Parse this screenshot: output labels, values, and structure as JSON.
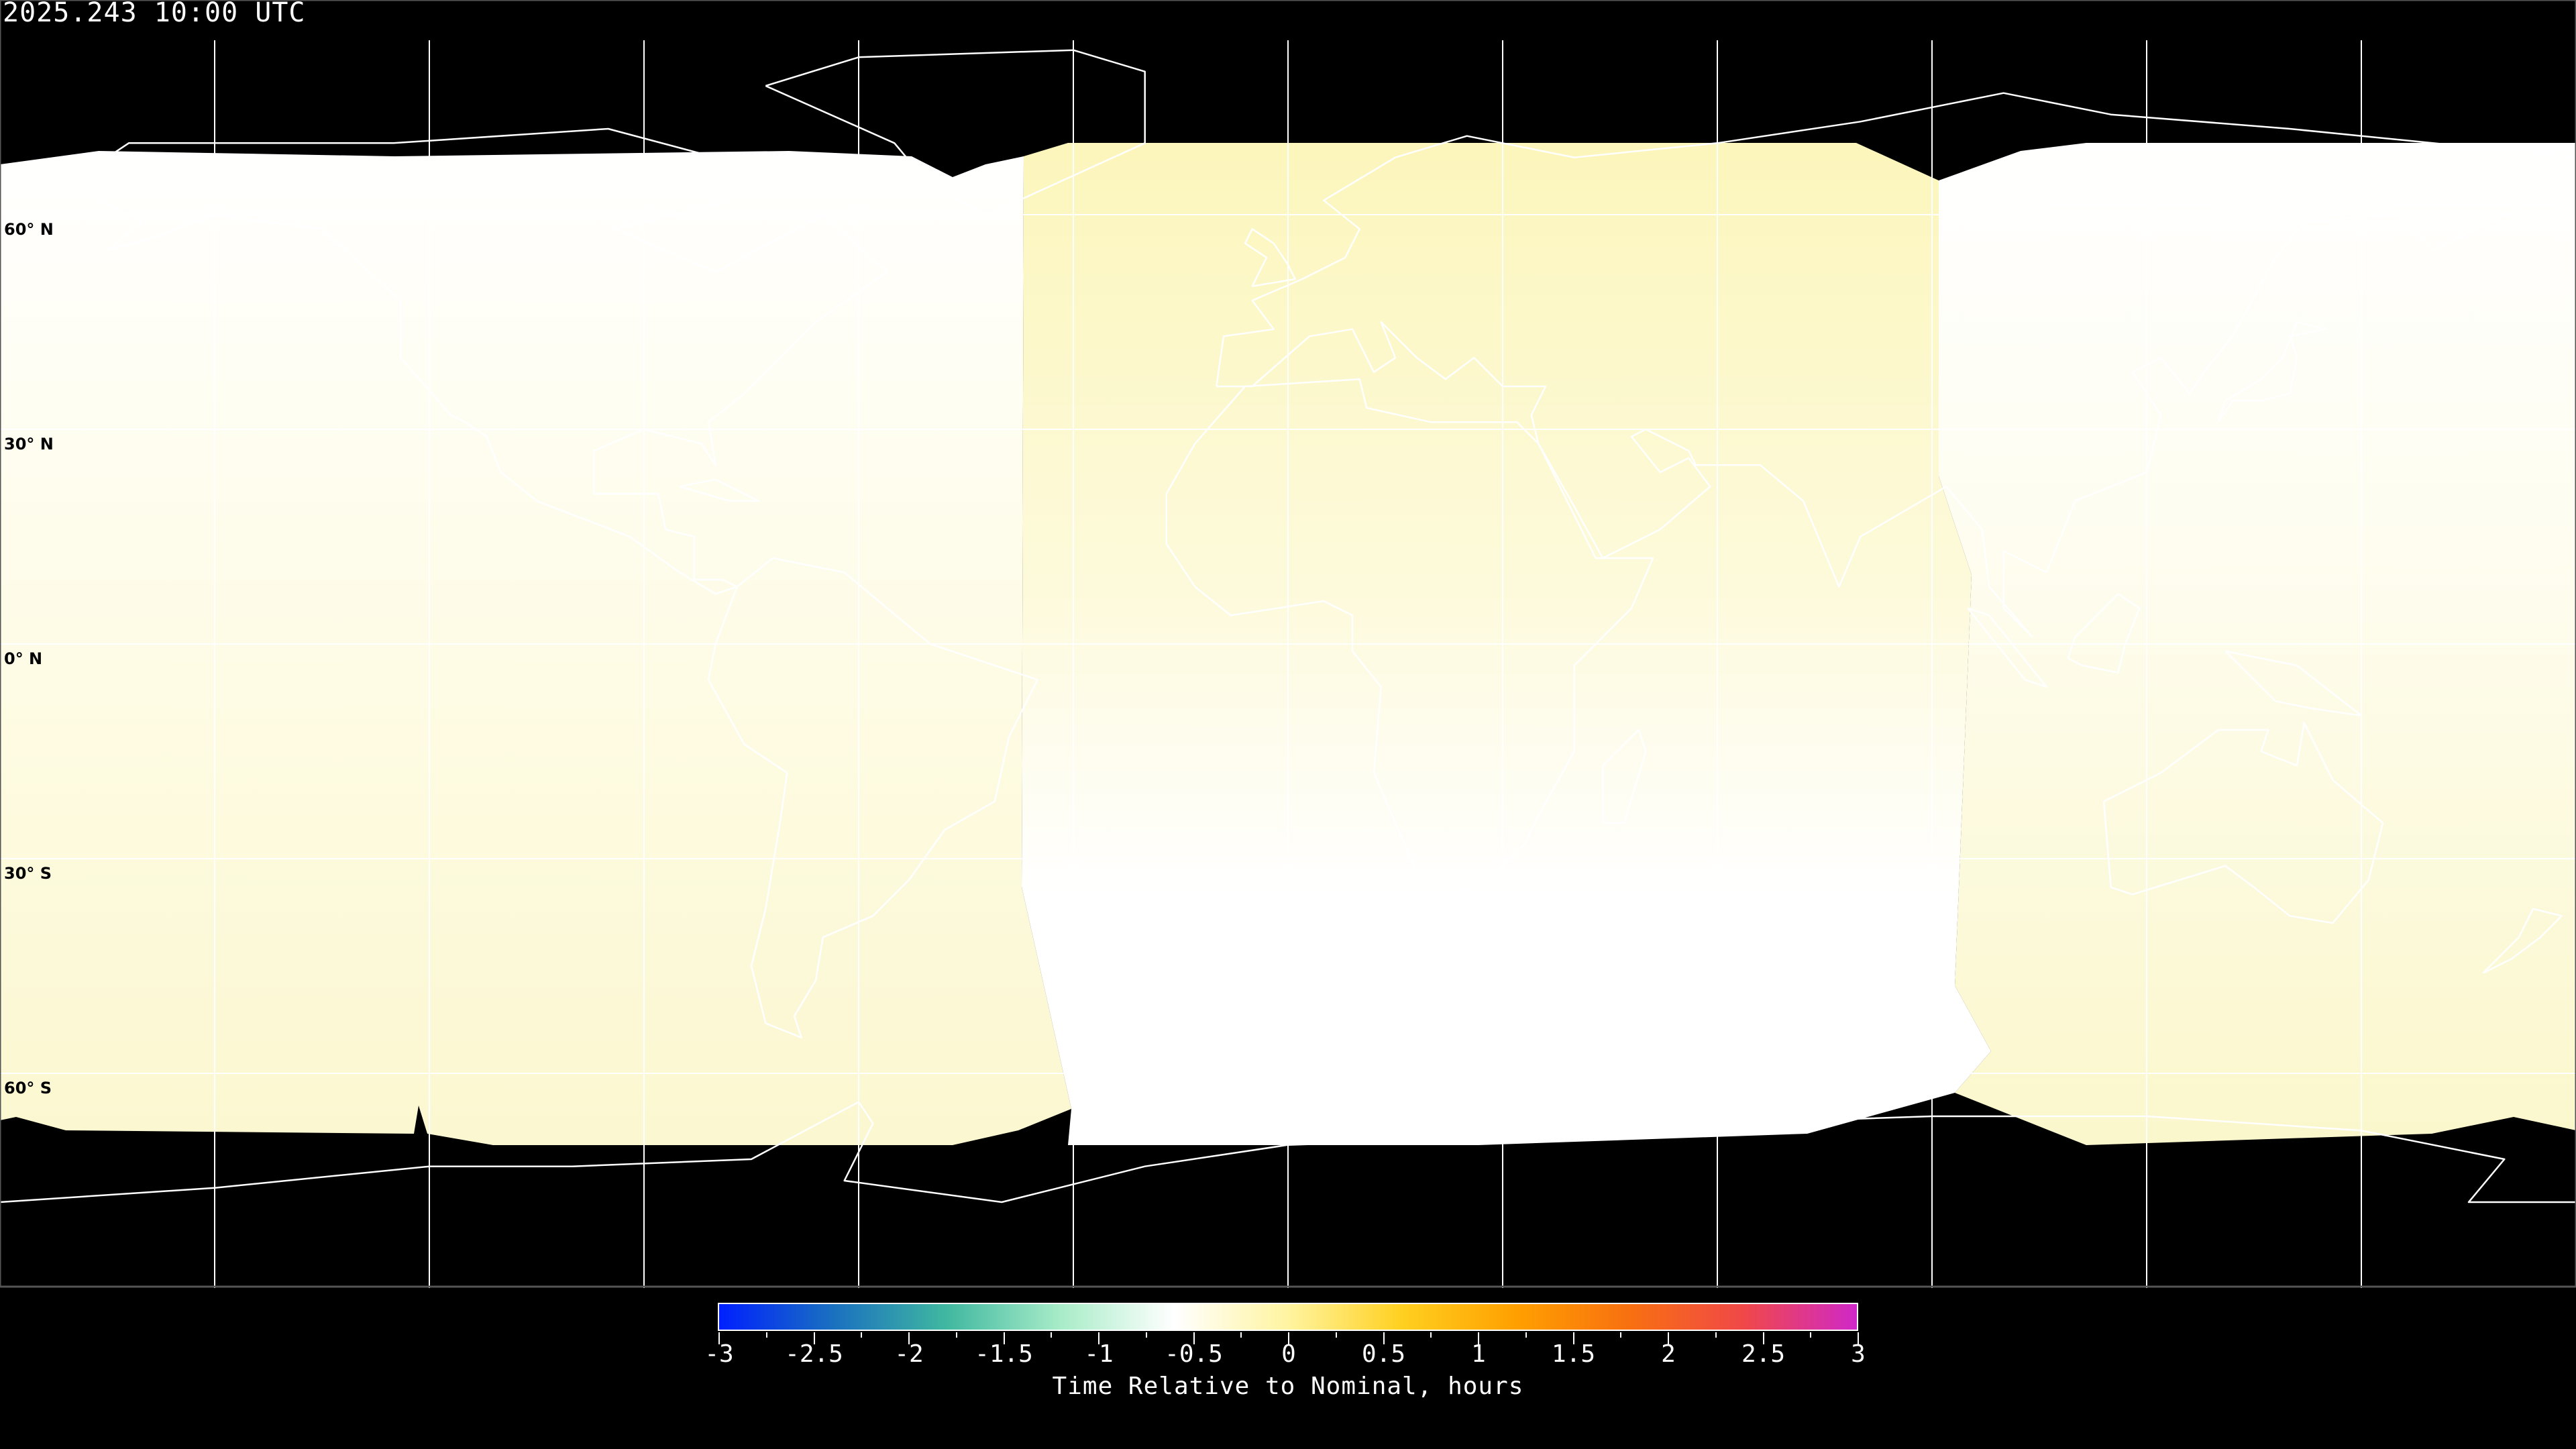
{
  "title": "2025.243 10:00 UTC",
  "map": {
    "projection": "equirectangular",
    "lat_labels": [
      "60° N",
      "30° N",
      "0° N",
      "30° S",
      "60° S"
    ],
    "lat_values": [
      60,
      30,
      0,
      -30,
      -60
    ],
    "grid_lon_step": 30,
    "background_color": "#000000",
    "coastline_color": "#000000"
  },
  "colorbar": {
    "label": "Time Relative to Nominal, hours",
    "ticks": [
      "-3",
      "-2.5",
      "-2",
      "-1.5",
      "-1",
      "-0.5",
      "0",
      "0.5",
      "1",
      "1.5",
      "2",
      "2.5",
      "3"
    ],
    "range": [
      -3,
      3
    ],
    "colors": [
      "#0020ff",
      "#1a70c0",
      "#40b8a0",
      "#a8ecc8",
      "#ffffff",
      "#fff4a0",
      "#ffd020",
      "#ffa000",
      "#f87010",
      "#f04848",
      "#d028c8"
    ]
  }
}
